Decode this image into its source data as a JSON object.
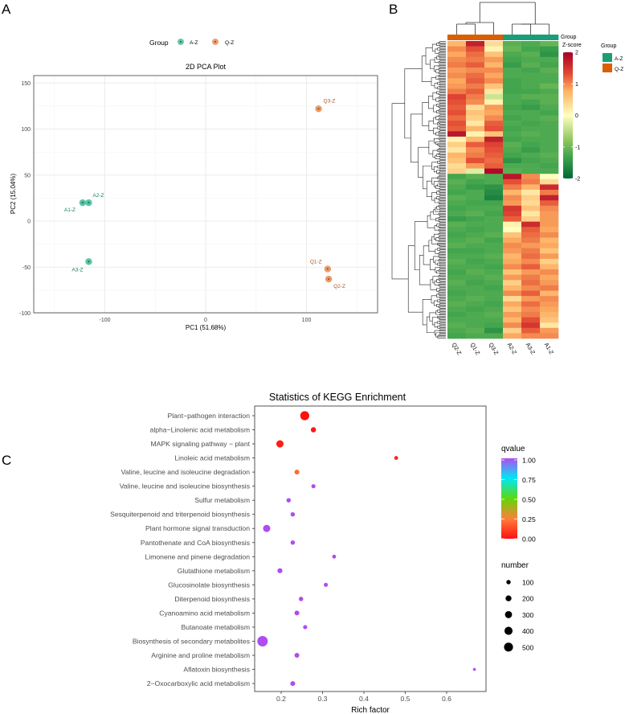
{
  "panel_labels": {
    "a": "A",
    "b": "B",
    "c": "C"
  },
  "colors": {
    "A-Z": "#1b9e77",
    "Q-Z": "#d95f02",
    "pca_A": "#2bb08a",
    "pca_Q": "#e07b39"
  },
  "chart_data": [
    {
      "type": "scatter",
      "title": "2D PCA Plot",
      "xlabel": "PC1 (51.68%)",
      "ylabel": "PC2 (15.04%)",
      "xlim": [
        -165,
        165
      ],
      "ylim": [
        -100,
        158
      ],
      "xticks": [
        -100,
        0,
        100
      ],
      "yticks": [
        150,
        100,
        50,
        0,
        -50,
        -100
      ],
      "grid": true,
      "legend": {
        "title": "Group",
        "placement": "top",
        "entries": [
          "A-Z",
          "Q-Z"
        ]
      },
      "points": [
        {
          "label": "A1-Z",
          "group": "A-Z",
          "x": -122,
          "y": 20
        },
        {
          "label": "A2-Z",
          "group": "A-Z",
          "x": -116,
          "y": 20
        },
        {
          "label": "A3-Z",
          "group": "A-Z",
          "x": -116,
          "y": -44
        },
        {
          "label": "Q3-Z",
          "group": "Q-Z",
          "x": 112,
          "y": 122
        },
        {
          "label": "Q1-Z",
          "group": "Q-Z",
          "x": 121,
          "y": -52
        },
        {
          "label": "Q2-Z",
          "group": "Q-Z",
          "x": 122,
          "y": -63
        }
      ]
    },
    {
      "type": "heatmap",
      "columns": [
        "Q2-Z",
        "Q1-Z",
        "Q3-Z",
        "A2-Z",
        "A3-Z",
        "A1-Z"
      ],
      "column_groups": [
        "Q-Z",
        "Q-Z",
        "Q-Z",
        "A-Z",
        "A-Z",
        "A-Z"
      ],
      "annotation_label": "Group",
      "colorbar_title": "Z-score",
      "colorbar_ticks": [
        2,
        1,
        0,
        -1,
        -2
      ],
      "range": [
        -2,
        2
      ],
      "legend": {
        "title": "Group",
        "entries": [
          "A-Z",
          "Q-Z"
        ]
      },
      "values": [
        [
          0.6,
          1.7,
          0.3,
          -1.1,
          -1.2,
          -1.0
        ],
        [
          0.9,
          1.3,
          0.1,
          -1.0,
          -1.3,
          -1.4
        ],
        [
          0.7,
          1.1,
          0.5,
          -1.2,
          -1.1,
          -1.5
        ],
        [
          0.9,
          1.0,
          0.8,
          -1.3,
          -1.2,
          -1.2
        ],
        [
          1.0,
          1.2,
          0.6,
          -1.4,
          -1.1,
          -1.3
        ],
        [
          0.8,
          0.9,
          0.9,
          -1.2,
          -1.3,
          -1.1
        ],
        [
          0.9,
          1.1,
          0.7,
          -1.2,
          -1.2,
          -1.2
        ],
        [
          0.7,
          1.2,
          0.9,
          -1.3,
          -1.2,
          -1.2
        ],
        [
          0.8,
          1.0,
          0.5,
          -1.3,
          -1.2,
          -1.0
        ],
        [
          1.0,
          1.2,
          0.2,
          -1.3,
          -1.3,
          -1.2
        ],
        [
          1.4,
          1.0,
          -0.3,
          -1.2,
          -1.1,
          -1.1
        ],
        [
          1.3,
          0.9,
          0.1,
          -1.2,
          -1.3,
          -1.1
        ],
        [
          1.2,
          0.3,
          0.8,
          -1.3,
          -1.4,
          -1.2
        ],
        [
          1.3,
          0.5,
          0.7,
          -1.2,
          -1.2,
          -1.3
        ],
        [
          1.1,
          0.4,
          0.9,
          -1.3,
          -1.2,
          -1.1
        ],
        [
          1.3,
          0.2,
          1.2,
          -1.2,
          -1.3,
          -1.2
        ],
        [
          1.2,
          0.6,
          1.3,
          -1.3,
          -1.2,
          -1.2
        ],
        [
          1.8,
          0.1,
          0.5,
          -1.2,
          -1.1,
          -1.2
        ],
        [
          0.1,
          0.6,
          1.7,
          -1.3,
          -1.2,
          -1.2
        ],
        [
          0.4,
          1.2,
          1.4,
          -1.1,
          -1.3,
          -1.2
        ],
        [
          0.2,
          0.9,
          1.3,
          -1.2,
          -1.4,
          -1.2
        ],
        [
          0.6,
          1.0,
          1.2,
          -1.3,
          -1.2,
          -1.1
        ],
        [
          0.5,
          1.3,
          1.1,
          -1.5,
          -1.3,
          -1.2
        ],
        [
          0.3,
          0.8,
          1.2,
          -1.2,
          -1.2,
          -1.3
        ],
        [
          0.4,
          -0.2,
          1.9,
          -1.1,
          -1.2,
          -1.2
        ],
        [
          -1.3,
          -1.1,
          -1.2,
          1.8,
          0.9,
          0.0
        ],
        [
          -1.1,
          -1.3,
          -1.2,
          1.3,
          1.0,
          0.3
        ],
        [
          -1.2,
          -1.4,
          -1.5,
          1.0,
          0.6,
          1.6
        ],
        [
          -1.3,
          -1.2,
          -1.6,
          0.6,
          0.2,
          1.0
        ],
        [
          -1.1,
          -1.2,
          -1.7,
          0.9,
          0.4,
          1.7
        ],
        [
          -1.2,
          -1.3,
          -1.3,
          0.8,
          0.3,
          1.2
        ],
        [
          -1.3,
          -1.2,
          -1.2,
          1.5,
          0.5,
          0.9
        ],
        [
          -1.2,
          -1.1,
          -1.3,
          1.4,
          0.2,
          0.8
        ],
        [
          -1.4,
          -1.3,
          -1.2,
          1.2,
          0.4,
          0.8
        ],
        [
          -1.1,
          -1.2,
          -1.2,
          0.1,
          1.6,
          0.8
        ],
        [
          -1.2,
          -1.3,
          -1.2,
          0.0,
          1.2,
          0.7
        ],
        [
          -1.3,
          -1.2,
          -1.1,
          0.5,
          1.1,
          0.9
        ],
        [
          -1.2,
          -1.1,
          -1.3,
          0.7,
          1.0,
          0.6
        ],
        [
          -1.1,
          -1.2,
          -1.2,
          0.9,
          0.8,
          0.7
        ],
        [
          -1.3,
          -1.3,
          -1.2,
          0.8,
          1.0,
          0.5
        ],
        [
          -1.2,
          -1.2,
          -1.1,
          0.6,
          1.1,
          0.8
        ],
        [
          -1.1,
          -1.3,
          -1.2,
          0.7,
          0.9,
          0.4
        ],
        [
          -1.2,
          -1.2,
          -1.3,
          0.9,
          1.2,
          0.6
        ],
        [
          -1.3,
          -1.1,
          -1.2,
          0.5,
          0.8,
          0.9
        ],
        [
          -1.2,
          -1.2,
          -1.1,
          0.8,
          1.0,
          0.7
        ],
        [
          -1.1,
          -1.3,
          -1.2,
          0.4,
          1.1,
          0.8
        ],
        [
          -1.2,
          -1.2,
          -1.3,
          0.6,
          0.9,
          1.0
        ],
        [
          -1.3,
          -1.2,
          -1.2,
          0.9,
          1.2,
          0.6
        ],
        [
          -1.2,
          -1.1,
          -1.2,
          0.3,
          0.8,
          0.9
        ],
        [
          -1.1,
          -1.2,
          -1.3,
          0.7,
          1.1,
          0.8
        ],
        [
          -1.2,
          -1.3,
          -1.2,
          0.5,
          0.9,
          0.7
        ],
        [
          -1.3,
          -1.2,
          -1.1,
          0.8,
          1.0,
          0.6
        ],
        [
          -1.2,
          -1.2,
          -1.2,
          0.6,
          1.3,
          0.5
        ],
        [
          -1.1,
          -1.2,
          -1.3,
          0.9,
          1.5,
          0.2
        ],
        [
          -1.2,
          -1.1,
          -1.5,
          0.4,
          1.2,
          0.8
        ],
        [
          -1.3,
          -1.2,
          -1.2,
          0.7,
          0.9,
          0.9
        ]
      ]
    },
    {
      "type": "scatter",
      "title": "Statistics of KEGG Enrichment",
      "xlabel": "Rich factor",
      "xlim": [
        0.136,
        0.695
      ],
      "xticks": [
        0.2,
        0.3,
        0.4,
        0.5,
        0.6
      ],
      "color_legend": {
        "title": "qvalue",
        "ticks": [
          "1.00",
          "0.75",
          "0.50",
          "0.25",
          "0.00"
        ]
      },
      "size_legend": {
        "title": "number",
        "ticks": [
          100,
          200,
          300,
          400,
          500
        ]
      },
      "points": [
        {
          "pathway": "Plant−pathogen interaction",
          "rich_factor": 0.257,
          "qvalue": 0.0,
          "number": 400
        },
        {
          "pathway": "alpha−Linolenic acid metabolism",
          "rich_factor": 0.278,
          "qvalue": 0.02,
          "number": 120
        },
        {
          "pathway": "MAPK signaling pathway − plant",
          "rich_factor": 0.197,
          "qvalue": 0.03,
          "number": 250
        },
        {
          "pathway": "Linoleic acid metabolism",
          "rich_factor": 0.478,
          "qvalue": 0.05,
          "number": 60
        },
        {
          "pathway": "Valine, leucine and isoleucine degradation",
          "rich_factor": 0.238,
          "qvalue": 0.2,
          "number": 100
        },
        {
          "pathway": "Valine, leucine and isoleucine biosynthesis",
          "rich_factor": 0.278,
          "qvalue": 1.0,
          "number": 70
        },
        {
          "pathway": "Sulfur metabolism",
          "rich_factor": 0.218,
          "qvalue": 1.0,
          "number": 80
        },
        {
          "pathway": "Sesquiterpenoid and triterpenoid biosynthesis",
          "rich_factor": 0.228,
          "qvalue": 1.0,
          "number": 80
        },
        {
          "pathway": "Plant hormone signal transduction",
          "rich_factor": 0.165,
          "qvalue": 1.0,
          "number": 250
        },
        {
          "pathway": "Pantothenate and CoA biosynthesis",
          "rich_factor": 0.228,
          "qvalue": 1.0,
          "number": 80
        },
        {
          "pathway": "Limonene and pinene degradation",
          "rich_factor": 0.328,
          "qvalue": 1.0,
          "number": 60
        },
        {
          "pathway": "Glutathione metabolism",
          "rich_factor": 0.197,
          "qvalue": 1.0,
          "number": 110
        },
        {
          "pathway": "Glucosinolate biosynthesis",
          "rich_factor": 0.308,
          "qvalue": 1.0,
          "number": 70
        },
        {
          "pathway": "Diterpenoid biosynthesis",
          "rich_factor": 0.248,
          "qvalue": 1.0,
          "number": 80
        },
        {
          "pathway": "Cyanoamino acid metabolism",
          "rich_factor": 0.238,
          "qvalue": 1.0,
          "number": 100
        },
        {
          "pathway": "Butanoate metabolism",
          "rich_factor": 0.258,
          "qvalue": 1.0,
          "number": 70
        },
        {
          "pathway": "Biosynthesis of secondary metabolites",
          "rich_factor": 0.155,
          "qvalue": 1.0,
          "number": 550
        },
        {
          "pathway": "Arginine and proline metabolism",
          "rich_factor": 0.238,
          "qvalue": 1.0,
          "number": 100
        },
        {
          "pathway": "Aflatoxin biosynthesis",
          "rich_factor": 0.667,
          "qvalue": 1.0,
          "number": 30
        },
        {
          "pathway": "2−Oxocarboxylic acid metabolism",
          "rich_factor": 0.228,
          "qvalue": 1.0,
          "number": 100
        }
      ]
    }
  ]
}
